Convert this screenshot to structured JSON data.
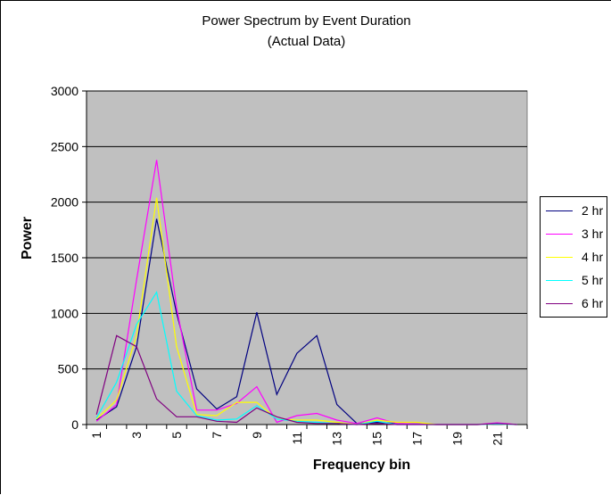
{
  "chart_data": {
    "type": "line",
    "title": "Power Spectrum by Event Duration",
    "subtitle": "(Actual Data)",
    "xlabel": "Frequency bin",
    "ylabel": "Power",
    "ylim": [
      0,
      3000
    ],
    "yticks": [
      0,
      500,
      1000,
      1500,
      2000,
      2500,
      3000
    ],
    "x": [
      1,
      2,
      3,
      4,
      5,
      6,
      7,
      8,
      9,
      10,
      11,
      12,
      13,
      14,
      15,
      16,
      17,
      18,
      19,
      20,
      21,
      22
    ],
    "xtick_labels": [
      "1",
      "3",
      "5",
      "7",
      "9",
      "11",
      "13",
      "15",
      "17",
      "19",
      "21"
    ],
    "grid": true,
    "legend_position": "right",
    "plot_background": "#c0c0c0",
    "series": [
      {
        "name": "2 hr",
        "color": "#000080",
        "values": [
          40,
          160,
          700,
          1850,
          1000,
          320,
          140,
          250,
          1010,
          270,
          640,
          800,
          180,
          10,
          20,
          10,
          5,
          0,
          0,
          0,
          5,
          0
        ]
      },
      {
        "name": "3 hr",
        "color": "#ff00ff",
        "values": [
          30,
          180,
          1300,
          2380,
          1050,
          130,
          130,
          190,
          340,
          20,
          80,
          100,
          40,
          10,
          60,
          10,
          5,
          0,
          0,
          0,
          15,
          0
        ]
      },
      {
        "name": "4 hr",
        "color": "#ffff00",
        "values": [
          50,
          220,
          800,
          2040,
          700,
          90,
          80,
          200,
          200,
          50,
          40,
          40,
          20,
          0,
          40,
          20,
          20,
          0,
          0,
          0,
          5,
          0
        ]
      },
      {
        "name": "5 hr",
        "color": "#00ffff",
        "values": [
          60,
          380,
          900,
          1190,
          300,
          80,
          40,
          50,
          170,
          50,
          30,
          20,
          10,
          0,
          30,
          0,
          0,
          0,
          0,
          0,
          5,
          0
        ]
      },
      {
        "name": "6 hr",
        "color": "#800080",
        "values": [
          90,
          800,
          700,
          230,
          70,
          70,
          30,
          20,
          150,
          70,
          20,
          10,
          10,
          0,
          10,
          0,
          0,
          0,
          0,
          0,
          10,
          0
        ]
      }
    ]
  }
}
